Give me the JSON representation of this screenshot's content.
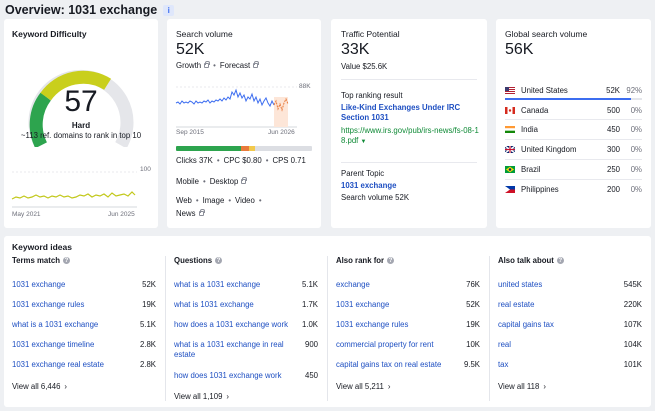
{
  "overview": {
    "title": "Overview: 1031 exchange",
    "info_icon": "i"
  },
  "kd": {
    "title": "Keyword Difficulty",
    "value": "57",
    "level": "Hard",
    "description": "~113 ref. domains to rank in top 10",
    "level_fraction": 0.57,
    "trend_from": "May 2021",
    "trend_to": "Jun 2025",
    "trend_max": "100"
  },
  "sv": {
    "title": "Search volume",
    "value": "52K",
    "growth_label": "Growth",
    "forecast_label": "Forecast",
    "chart_max": "88K",
    "chart_from": "Sep 2015",
    "chart_to": "Jun 2026",
    "clicks": "Clicks 37K",
    "cpc": "CPC $0.80",
    "cps": "CPS 0.71",
    "mobile": "Mobile",
    "desktop": "Desktop",
    "web": "Web",
    "image": "Image",
    "video": "Video",
    "news": "News"
  },
  "tp": {
    "title": "Traffic Potential",
    "value": "33K",
    "value_line": "Value $25.6K",
    "top_result_label": "Top ranking result",
    "top_result_title": "Like-Kind Exchanges Under IRC Section 1031",
    "top_result_url": "https://www.irs.gov/pub/irs-news/fs-08-18.pdf",
    "parent_topic_label": "Parent Topic",
    "parent_topic": "1031 exchange",
    "parent_sv": "Search volume 52K"
  },
  "gsv": {
    "title": "Global search volume",
    "value": "56K",
    "countries": [
      {
        "name": "United States",
        "value": "52K",
        "pct": "92%"
      },
      {
        "name": "Canada",
        "value": "500",
        "pct": "0%"
      },
      {
        "name": "India",
        "value": "450",
        "pct": "0%"
      },
      {
        "name": "United Kingdom",
        "value": "300",
        "pct": "0%"
      },
      {
        "name": "Brazil",
        "value": "250",
        "pct": "0%"
      },
      {
        "name": "Philippines",
        "value": "200",
        "pct": "0%"
      }
    ]
  },
  "ideas": {
    "title": "Keyword ideas",
    "columns": [
      {
        "header": "Terms match",
        "rows": [
          {
            "kw": "1031 exchange",
            "vol": "52K"
          },
          {
            "kw": "1031 exchange rules",
            "vol": "19K"
          },
          {
            "kw": "what is a 1031 exchange",
            "vol": "5.1K"
          },
          {
            "kw": "1031 exchange timeline",
            "vol": "2.8K"
          },
          {
            "kw": "1031 exchange real estate",
            "vol": "2.8K"
          }
        ],
        "view_all": "View all 6,446"
      },
      {
        "header": "Questions",
        "rows": [
          {
            "kw": "what is a 1031 exchange",
            "vol": "5.1K"
          },
          {
            "kw": "what is 1031 exchange",
            "vol": "1.7K"
          },
          {
            "kw": "how does a 1031 exchange work",
            "vol": "1.0K"
          },
          {
            "kw": "what is a 1031 exchange in real estate",
            "vol": "900"
          },
          {
            "kw": "how does 1031 exchange work",
            "vol": "450"
          }
        ],
        "view_all": "View all 1,109"
      },
      {
        "header": "Also rank for",
        "rows": [
          {
            "kw": "exchange",
            "vol": "76K"
          },
          {
            "kw": "1031 exchange",
            "vol": "52K"
          },
          {
            "kw": "1031 exchange rules",
            "vol": "19K"
          },
          {
            "kw": "commercial property for rent",
            "vol": "10K"
          },
          {
            "kw": "capital gains tax on real estate",
            "vol": "9.5K"
          }
        ],
        "view_all": "View all 5,211"
      },
      {
        "header": "Also talk about",
        "rows": [
          {
            "kw": "united states",
            "vol": "545K"
          },
          {
            "kw": "real estate",
            "vol": "220K"
          },
          {
            "kw": "capital gains tax",
            "vol": "107K"
          },
          {
            "kw": "real",
            "vol": "104K"
          },
          {
            "kw": "tax",
            "vol": "101K"
          }
        ],
        "view_all": "View all 118"
      }
    ]
  },
  "colors": {
    "link": "#1e4fc2",
    "url_green": "#0f8a36",
    "gauge_green": "#2da44e",
    "gauge_yellow": "#c9cf1c",
    "accent_blue": "#3c6df0"
  }
}
